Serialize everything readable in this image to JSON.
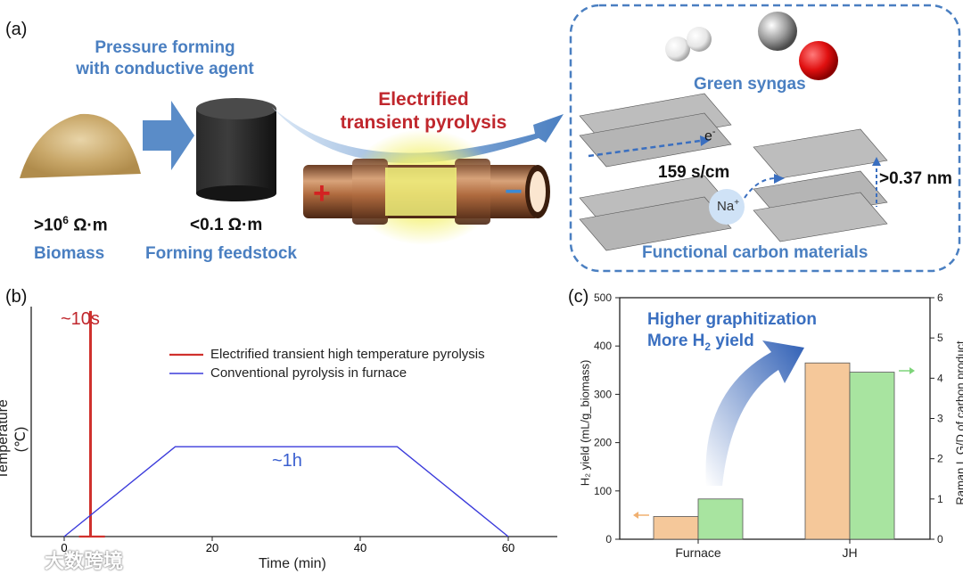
{
  "panel_a": {
    "label": "(a)",
    "pressure_line1": "Pressure forming",
    "pressure_line2": "with conductive agent",
    "biomass_resistivity_base": ">10",
    "biomass_resistivity_exp": "6",
    "biomass_resistivity_unit": " Ω·m",
    "biomass_label": "Biomass",
    "feedstock_resistivity": "<0.1 Ω·m",
    "feedstock_label": "Forming feedstock",
    "pyrolysis_line1": "Electrified",
    "pyrolysis_line2": "transient pyrolysis",
    "plus_sign": "+",
    "minus_sign": "−",
    "syngas_label": "Green syngas",
    "electron_label": "e",
    "electron_sup": "-",
    "conductivity_label": "159 s/cm",
    "sodium_label": "Na",
    "sodium_sup": "+",
    "spacing_label": ">0.37 nm",
    "functional_label": "Functional carbon materials"
  },
  "panel_b": {
    "label": "(b)",
    "spike_annotation": "~10s",
    "plateau_annotation": "~1h",
    "legend_red": "Electrified transient high temperature pyrolysis",
    "legend_blue": "Conventional pyrolysis in furnace",
    "ylabel": "Temperature (℃)",
    "xlabel": "Time (min)",
    "xticks": [
      "0",
      "20",
      "40",
      "60"
    ]
  },
  "panel_c": {
    "label": "(c)",
    "annot_line1": "Higher graphitization",
    "annot_line2_pre": "More H",
    "annot_line2_sub": "2",
    "annot_line2_post": " yield",
    "ylabel_left": "H₂ yield (mL/g_biomass)",
    "ylabel_right": "Raman I_G/D of carbon product",
    "left_ticks": [
      "0",
      "100",
      "200",
      "300",
      "400",
      "500"
    ],
    "right_ticks": [
      "0",
      "1",
      "2",
      "3",
      "4",
      "5",
      "6"
    ]
  },
  "watermark": "大数跨境",
  "colors": {
    "blue_text": "#4a7fc1",
    "red_text": "#c0272d",
    "bar_orange": "#f5c89a",
    "bar_green": "#a8e4a0",
    "line_red": "#d0312d",
    "line_blue": "#3b3bdb"
  },
  "chart_data": [
    {
      "type": "line",
      "xlabel": "Time (min)",
      "ylabel": "Temperature (℃)",
      "xlim": [
        0,
        65
      ],
      "series": [
        {
          "name": "Electrified transient high temperature pyrolysis",
          "x": [
            2,
            3.5,
            3.5,
            3.6,
            3.6,
            5.5
          ],
          "y": [
            0,
            0,
            100,
            100,
            0,
            0
          ]
        },
        {
          "name": "Conventional pyrolysis in furnace",
          "x": [
            0,
            15,
            45,
            60
          ],
          "y": [
            0,
            40,
            40,
            0
          ]
        }
      ]
    },
    {
      "type": "bar",
      "categories": [
        "Furnace",
        "JH"
      ],
      "ylabel": "H₂ yield (mL/g_biomass)",
      "ylim": [
        0,
        500
      ],
      "y2label": "Raman I_G/D of carbon product",
      "y2lim": [
        0,
        6
      ],
      "series": [
        {
          "values": [
            47,
            365
          ],
          "axis": "left"
        },
        {
          "values": [
            1.0,
            4.15
          ],
          "axis": "right"
        }
      ]
    }
  ]
}
